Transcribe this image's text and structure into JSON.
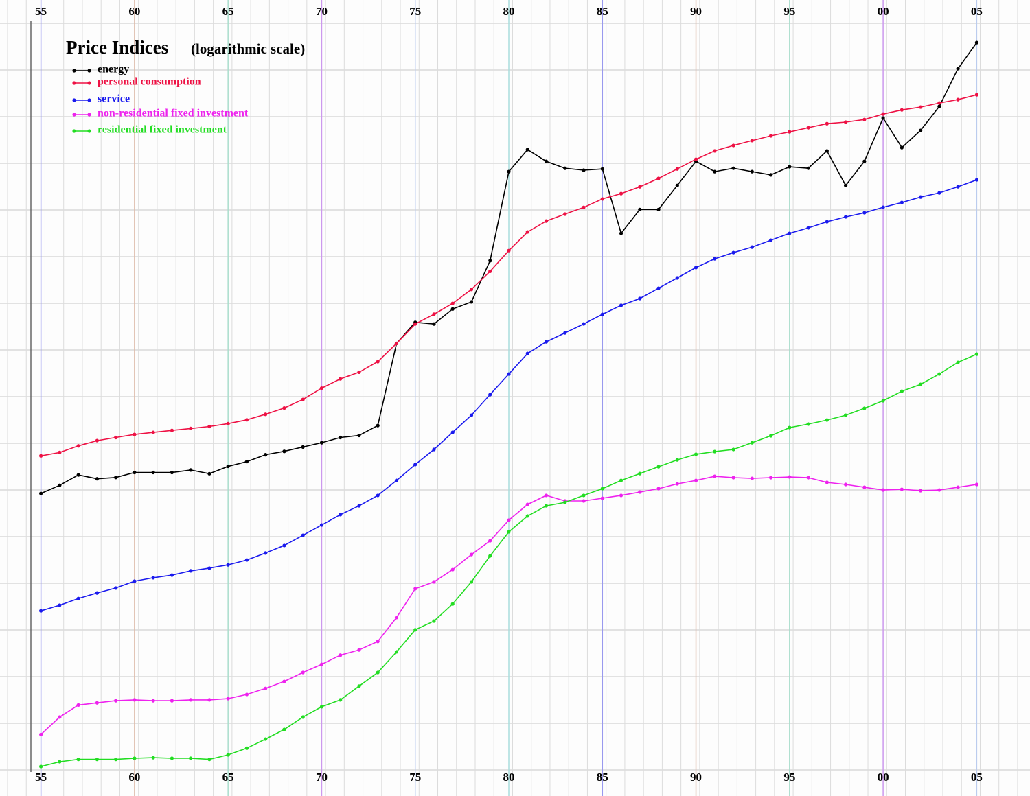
{
  "chart_data": {
    "type": "line",
    "title": "Price Indices",
    "subtitle": "(logarithmic scale)",
    "x": [
      1955,
      1956,
      1957,
      1958,
      1959,
      1960,
      1961,
      1962,
      1963,
      1964,
      1965,
      1966,
      1967,
      1968,
      1969,
      1970,
      1971,
      1972,
      1973,
      1974,
      1975,
      1976,
      1977,
      1978,
      1979,
      1980,
      1981,
      1982,
      1983,
      1984,
      1985,
      1986,
      1987,
      1988,
      1989,
      1990,
      1991,
      1992,
      1993,
      1994,
      1995,
      1996,
      1997,
      1998,
      1999,
      2000,
      2001,
      2002,
      2003,
      2004,
      2005
    ],
    "series": [
      {
        "name": "energy",
        "color": "#000000",
        "values": [
          13.4,
          14.0,
          14.8,
          14.5,
          14.6,
          15.0,
          15.0,
          15.0,
          15.2,
          14.9,
          15.5,
          15.9,
          16.5,
          16.8,
          17.2,
          17.6,
          18.1,
          18.3,
          19.3,
          30.0,
          33.6,
          33.3,
          36.1,
          37.5,
          46.8,
          75.5,
          85.0,
          79.8,
          76.9,
          76.1,
          76.6,
          54.2,
          61.6,
          61.6,
          70.1,
          79.8,
          75.5,
          76.9,
          75.5,
          74.2,
          77.5,
          76.9,
          84.4,
          70.1,
          79.8,
          100.7,
          85.9,
          94.2,
          107.2,
          131.3,
          151.0
        ]
      },
      {
        "name": "personal consumption",
        "color": "#ee1144",
        "values": [
          16.4,
          16.7,
          17.3,
          17.8,
          18.1,
          18.4,
          18.6,
          18.8,
          19.0,
          19.2,
          19.5,
          19.9,
          20.5,
          21.2,
          22.2,
          23.6,
          24.8,
          25.7,
          27.2,
          30.0,
          33.3,
          35.1,
          37.2,
          40.1,
          44.2,
          49.4,
          54.6,
          57.9,
          60.1,
          62.3,
          65.2,
          67.1,
          69.6,
          72.8,
          76.6,
          80.7,
          84.4,
          86.9,
          89.2,
          91.5,
          93.5,
          95.6,
          97.7,
          98.5,
          99.9,
          102.9,
          105.2,
          106.8,
          109.2,
          111.2,
          114.1
        ]
      },
      {
        "name": "service",
        "color": "#1a1aee",
        "values": [
          7.13,
          7.35,
          7.62,
          7.85,
          8.06,
          8.36,
          8.52,
          8.64,
          8.84,
          8.97,
          9.13,
          9.37,
          9.73,
          10.13,
          10.7,
          11.31,
          11.96,
          12.54,
          13.26,
          14.37,
          15.65,
          16.97,
          18.61,
          20.4,
          22.79,
          25.45,
          28.43,
          30.26,
          31.75,
          33.31,
          35.08,
          36.81,
          38.19,
          40.35,
          42.66,
          45.1,
          47.28,
          48.87,
          50.33,
          52.22,
          54.2,
          55.82,
          57.7,
          59.21,
          60.53,
          62.34,
          63.96,
          65.87,
          67.35,
          69.62,
          72.25
        ]
      },
      {
        "name": "non-residential fixed investment",
        "color": "#ee22ee",
        "values": [
          3.67,
          4.03,
          4.3,
          4.35,
          4.4,
          4.42,
          4.4,
          4.4,
          4.42,
          4.42,
          4.45,
          4.55,
          4.7,
          4.88,
          5.12,
          5.35,
          5.62,
          5.78,
          6.05,
          6.88,
          8.03,
          8.33,
          8.9,
          9.65,
          10.39,
          11.61,
          12.63,
          13.26,
          12.87,
          12.87,
          13.06,
          13.26,
          13.5,
          13.75,
          14.11,
          14.37,
          14.69,
          14.59,
          14.53,
          14.59,
          14.64,
          14.59,
          14.22,
          14.06,
          13.85,
          13.65,
          13.7,
          13.6,
          13.65,
          13.85,
          14.06
        ]
      },
      {
        "name": "residential fixed investment",
        "color": "#22dd22",
        "values": [
          3.09,
          3.17,
          3.21,
          3.21,
          3.21,
          3.23,
          3.24,
          3.23,
          3.23,
          3.21,
          3.29,
          3.41,
          3.58,
          3.77,
          4.03,
          4.26,
          4.42,
          4.76,
          5.12,
          5.72,
          6.44,
          6.75,
          7.4,
          8.33,
          9.58,
          10.9,
          11.87,
          12.54,
          12.77,
          13.26,
          13.75,
          14.37,
          14.91,
          15.47,
          16.05,
          16.54,
          16.78,
          16.97,
          17.6,
          18.27,
          19.09,
          19.45,
          19.88,
          20.4,
          21.17,
          22.05,
          23.21,
          24.08,
          25.45,
          27.1,
          28.32
        ]
      }
    ],
    "xlim": [
      1954.5,
      2005.5
    ],
    "xticks": [
      {
        "value": 1955,
        "label": "55"
      },
      {
        "value": 1960,
        "label": "60"
      },
      {
        "value": 1965,
        "label": "65"
      },
      {
        "value": 1970,
        "label": "70"
      },
      {
        "value": 1975,
        "label": "75"
      },
      {
        "value": 1980,
        "label": "80"
      },
      {
        "value": 1985,
        "label": "85"
      },
      {
        "value": 1990,
        "label": "90"
      },
      {
        "value": 1995,
        "label": "95"
      },
      {
        "value": 2000,
        "label": "00"
      },
      {
        "value": 2005,
        "label": "05"
      }
    ],
    "ylim": [
      3,
      170
    ],
    "log_scale": true,
    "grid": true
  }
}
